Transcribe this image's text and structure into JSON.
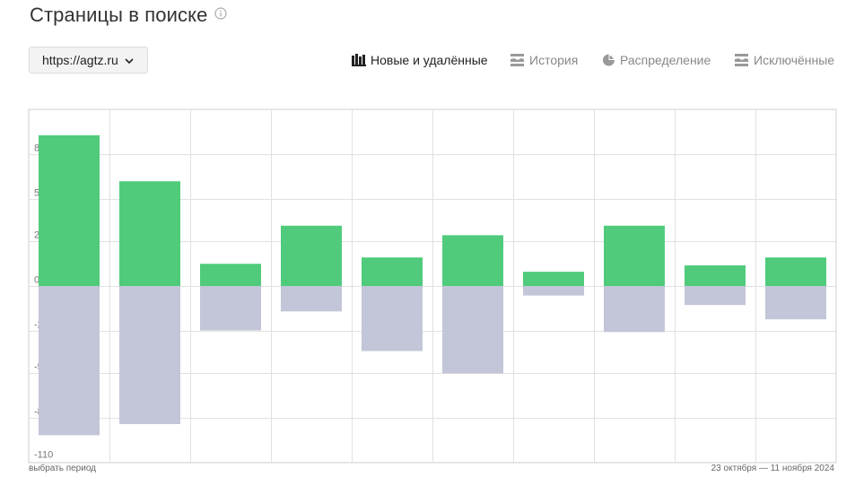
{
  "header": {
    "title": "Страницы в поиске",
    "info_icon": "info-circle-icon"
  },
  "host_select": {
    "value": "https://agtz.ru",
    "icon": "chevron-down-icon"
  },
  "tabs": [
    {
      "label": "Новые и удалённые",
      "icon": "bar-chart-icon",
      "active": true
    },
    {
      "label": "История",
      "icon": "layers-icon",
      "active": false
    },
    {
      "label": "Распределение",
      "icon": "pie-chart-icon",
      "active": false
    },
    {
      "label": "Исключённые",
      "icon": "layers-icon",
      "active": false
    }
  ],
  "chart_data": {
    "type": "bar",
    "title": "",
    "ylim": [
      -110,
      110
    ],
    "yticks": [
      83,
      55,
      28,
      0,
      -28,
      -55,
      -83,
      -110
    ],
    "grid": true,
    "series": [
      {
        "color": "#50cb7c",
        "values": [
          95,
          66,
          14,
          38,
          18,
          32,
          9,
          38,
          13,
          18
        ]
      },
      {
        "color": "#c3c6d8",
        "values": [
          -94,
          -87,
          -28,
          -16,
          -41,
          -55,
          -6,
          -29,
          -12,
          -21
        ]
      }
    ]
  },
  "footer": {
    "select_period": "выбрать период",
    "date_range": "23 октября — 11 ноября 2024"
  },
  "colors": {
    "positive": "#50cb7c",
    "negative": "#c3c6d8",
    "grid": "#e1e1e1",
    "tick_label": "#777777"
  }
}
